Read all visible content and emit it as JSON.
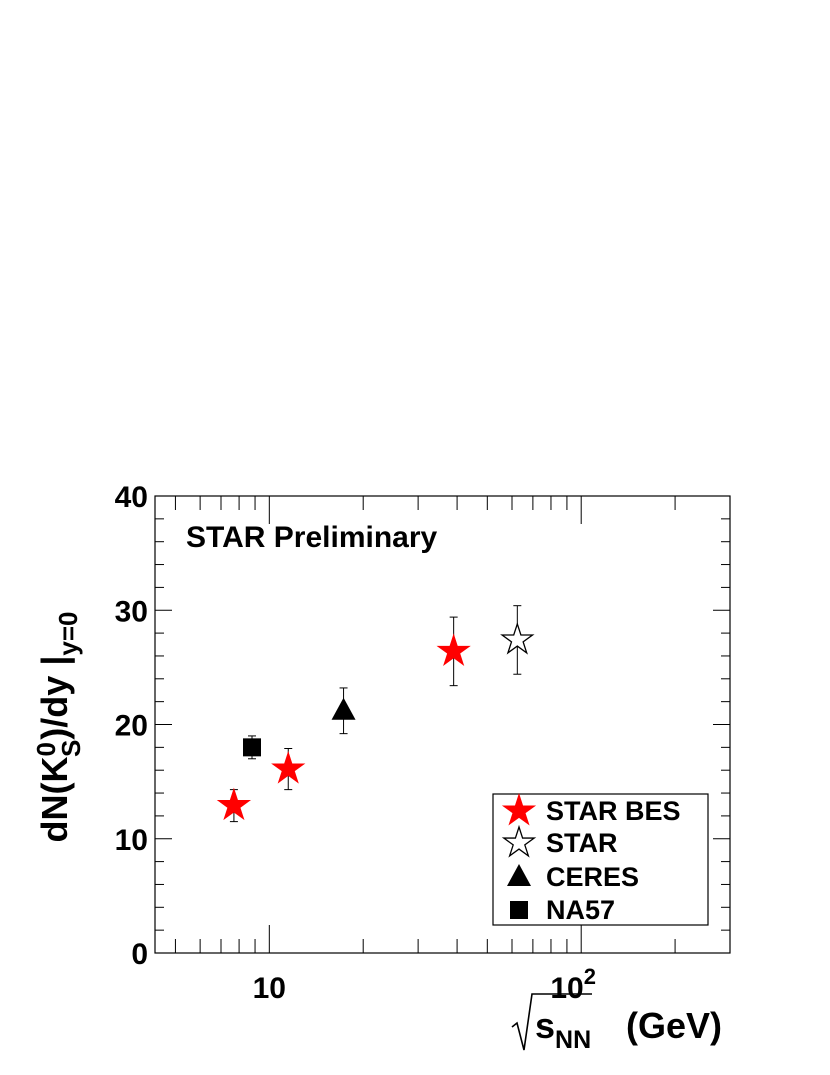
{
  "chart_data": {
    "type": "scatter",
    "annotation": "STAR Preliminary",
    "xaxis": {
      "scale": "log",
      "xlim": [
        4.3,
        300
      ],
      "ticks": [
        {
          "value": 10,
          "label": "10"
        },
        {
          "value": 100,
          "label": "10",
          "exponent": "2"
        }
      ],
      "title_root": "s",
      "title_sub": "NN",
      "title_unit": "(GeV)"
    },
    "yaxis": {
      "scale": "linear",
      "ylim": [
        0,
        40
      ],
      "ticks": [
        {
          "value": 0,
          "label": "0"
        },
        {
          "value": 10,
          "label": "10"
        },
        {
          "value": 20,
          "label": "20"
        },
        {
          "value": 30,
          "label": "30"
        },
        {
          "value": 40,
          "label": "40"
        }
      ],
      "title_parts": {
        "prefix": "dN(K",
        "sup": "0",
        "sub": "S",
        "suffix": ")/dy |",
        "bar_sub": "y=0"
      }
    },
    "series": [
      {
        "name": "STAR BES",
        "marker": "star-filled",
        "color": "#ff0000",
        "points": [
          {
            "x": 7.7,
            "y": 12.9,
            "err": 1.4
          },
          {
            "x": 11.5,
            "y": 16.1,
            "err": 1.8
          },
          {
            "x": 39,
            "y": 26.4,
            "err": 3.0
          }
        ]
      },
      {
        "name": "STAR",
        "marker": "star-open",
        "color": "#000000",
        "points": [
          {
            "x": 62.4,
            "y": 27.4,
            "err": 3.0
          }
        ]
      },
      {
        "name": "CERES",
        "marker": "triangle-filled",
        "color": "#000000",
        "points": [
          {
            "x": 17.3,
            "y": 21.2,
            "err": 2.0
          }
        ]
      },
      {
        "name": "NA57",
        "marker": "square-filled",
        "color": "#000000",
        "points": [
          {
            "x": 8.8,
            "y": 18.0,
            "err": 1.0
          }
        ]
      }
    ],
    "legend": {
      "position": "bottom-right"
    },
    "grid": false
  }
}
